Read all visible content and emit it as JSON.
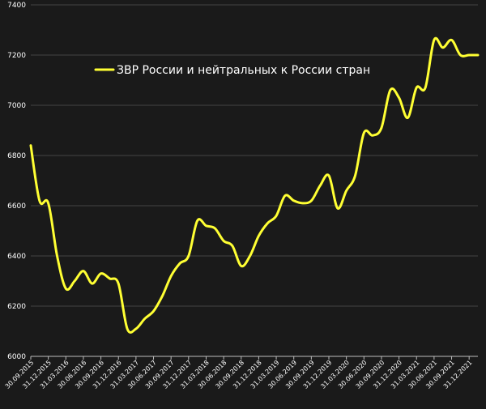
{
  "chart_data": {
    "type": "line",
    "title": "",
    "xlabel": "",
    "ylabel": "",
    "ylim": [
      6000,
      7400
    ],
    "yticks": [
      "6000",
      "6200",
      "6400",
      "6600",
      "6800",
      "7000",
      "7200",
      "7400"
    ],
    "xtick_labels": [
      "30.09.2015",
      "31.12.2015",
      "31.03.2016",
      "30.06.2016",
      "30.09.2016",
      "31.12.2016",
      "31.03.2017",
      "30.06.2017",
      "30.09.2017",
      "31.12.2017",
      "31.03.2018",
      "30.06.2018",
      "30.09.2018",
      "31.12.2018",
      "31.03.2019",
      "30.06.2019",
      "30.09.2019",
      "31.12.2019",
      "31.03.2020",
      "30.06.2020",
      "30.09.2020",
      "31.12.2020",
      "31.03.2021",
      "30.06.2021",
      "30.09.2021",
      "31.12.2021"
    ],
    "grid": true,
    "legend_position": "top-left",
    "series": [
      {
        "name": "ЗВР России и нейтральных к России стран",
        "color": "#ffff33",
        "x": [
          0,
          0.5,
          1,
          1.5,
          2,
          2.5,
          3,
          3.5,
          4,
          4.5,
          5,
          5.5,
          6,
          6.5,
          7,
          7.5,
          8,
          8.5,
          9,
          9.5,
          10,
          10.5,
          11,
          11.5,
          12,
          12.5,
          13,
          13.5,
          14,
          14.5,
          15,
          15.5,
          16,
          16.5,
          17,
          17.5,
          18,
          18.5,
          19,
          19.5,
          20,
          20.5,
          21,
          21.5,
          22,
          22.5,
          23,
          23.5,
          24,
          24.5,
          25,
          25.5
        ],
        "values": [
          6840,
          6620,
          6610,
          6400,
          6270,
          6300,
          6340,
          6290,
          6330,
          6310,
          6290,
          6110,
          6110,
          6150,
          6180,
          6240,
          6320,
          6370,
          6400,
          6540,
          6520,
          6510,
          6460,
          6440,
          6360,
          6400,
          6480,
          6530,
          6560,
          6640,
          6620,
          6610,
          6620,
          6680,
          6720,
          6590,
          6660,
          6720,
          6890,
          6880,
          6910,
          7060,
          7030,
          6950,
          7070,
          7070,
          7260,
          7230,
          7260,
          7200,
          7200,
          7200
        ]
      }
    ]
  }
}
